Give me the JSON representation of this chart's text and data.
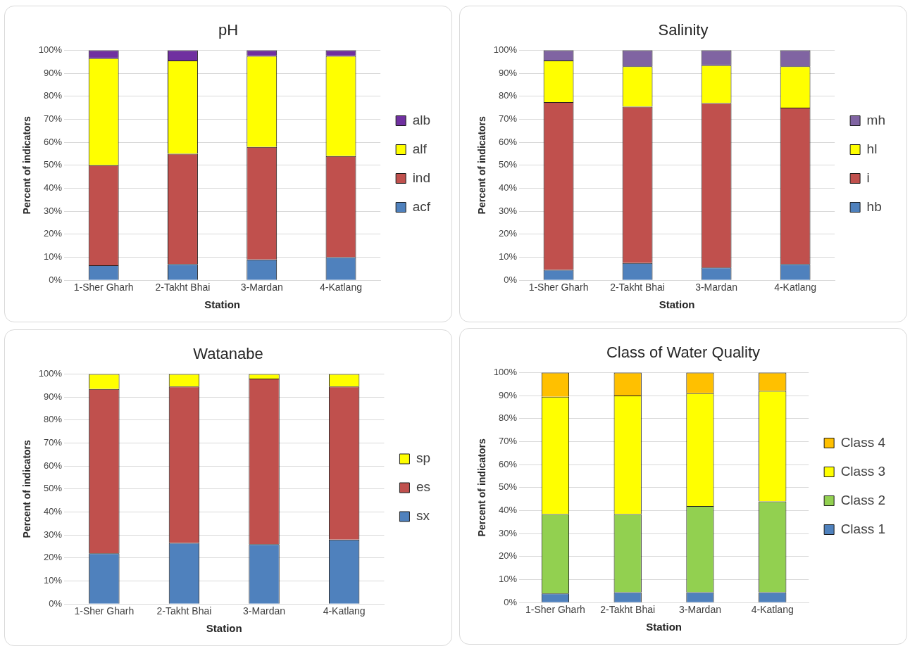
{
  "chart_data": [
    {
      "type": "bar",
      "title": "pH",
      "xlabel": "Station",
      "ylabel": "Percent of indicators",
      "categories": [
        "1-Sher Gharh",
        "2-Takht Bhai",
        "3-Mardan",
        "4-Katlang"
      ],
      "stacked": true,
      "legend": "right",
      "grid": "y",
      "ylim": [
        0,
        100
      ],
      "yticks": [
        {
          "value": 0,
          "label": "0%"
        },
        {
          "value": 10,
          "label": "10%"
        },
        {
          "value": 20,
          "label": "20%"
        },
        {
          "value": 30,
          "label": "30%"
        },
        {
          "value": 40,
          "label": "40%"
        },
        {
          "value": 50,
          "label": "50%"
        },
        {
          "value": 60,
          "label": "60%"
        },
        {
          "value": 70,
          "label": "70%"
        },
        {
          "value": 80,
          "label": "80%"
        },
        {
          "value": 90,
          "label": "90%"
        },
        {
          "value": 100,
          "label": "100%"
        }
      ],
      "series": [
        {
          "name": "acf",
          "color": "#4f81bd",
          "values": [
            6.5,
            7,
            9,
            10
          ]
        },
        {
          "name": "ind",
          "color": "#c0504d",
          "values": [
            43.5,
            48,
            49,
            44
          ]
        },
        {
          "name": "alf",
          "color": "#ffff00",
          "values": [
            46.5,
            40.5,
            39.5,
            43.5
          ]
        },
        {
          "name": "alb",
          "color": "#7030a0",
          "values": [
            3.5,
            4.5,
            2.5,
            2.5
          ]
        }
      ]
    },
    {
      "type": "bar",
      "title": "Salinity",
      "xlabel": "Station",
      "ylabel": "Percent of indicators",
      "categories": [
        "1-Sher Gharh",
        "2-Takht Bhai",
        "3-Mardan",
        "4-Katlang"
      ],
      "stacked": true,
      "legend": "right",
      "grid": "y",
      "ylim": [
        0,
        100
      ],
      "yticks": [
        {
          "value": 0,
          "label": "0%"
        },
        {
          "value": 10,
          "label": "10%"
        },
        {
          "value": 20,
          "label": "20%"
        },
        {
          "value": 30,
          "label": "30%"
        },
        {
          "value": 40,
          "label": "40%"
        },
        {
          "value": 50,
          "label": "50%"
        },
        {
          "value": 60,
          "label": "60%"
        },
        {
          "value": 70,
          "label": "70%"
        },
        {
          "value": 80,
          "label": "80%"
        },
        {
          "value": 90,
          "label": "90%"
        },
        {
          "value": 100,
          "label": "100%"
        }
      ],
      "series": [
        {
          "name": "hb",
          "color": "#4f81bd",
          "values": [
            4.5,
            7.5,
            5.5,
            7
          ]
        },
        {
          "name": "i",
          "color": "#c0504d",
          "values": [
            73,
            68,
            71.5,
            68
          ]
        },
        {
          "name": "hl",
          "color": "#ffff00",
          "values": [
            18,
            17.5,
            16.5,
            18
          ]
        },
        {
          "name": "mh",
          "color": "#8064a2",
          "values": [
            4.5,
            7,
            6.5,
            7
          ]
        }
      ]
    },
    {
      "type": "bar",
      "title": "Watanabe",
      "xlabel": "Station",
      "ylabel": "Percent of indicators",
      "categories": [
        "1-Sher Gharh",
        "2-Takht Bhai",
        "3-Mardan",
        "4-Katlang"
      ],
      "stacked": true,
      "legend": "right",
      "grid": "y",
      "ylim": [
        0,
        100
      ],
      "yticks": [
        {
          "value": 0,
          "label": "0%"
        },
        {
          "value": 10,
          "label": "10%"
        },
        {
          "value": 20,
          "label": "20%"
        },
        {
          "value": 30,
          "label": "30%"
        },
        {
          "value": 40,
          "label": "40%"
        },
        {
          "value": 50,
          "label": "50%"
        },
        {
          "value": 60,
          "label": "60%"
        },
        {
          "value": 70,
          "label": "70%"
        },
        {
          "value": 80,
          "label": "80%"
        },
        {
          "value": 90,
          "label": "90%"
        },
        {
          "value": 100,
          "label": "100%"
        }
      ],
      "series": [
        {
          "name": "sx",
          "color": "#4f81bd",
          "values": [
            22,
            26.5,
            26,
            28
          ]
        },
        {
          "name": "es",
          "color": "#c0504d",
          "values": [
            71.5,
            68,
            72,
            66.5
          ]
        },
        {
          "name": "sp",
          "color": "#ffff00",
          "values": [
            6.5,
            5.5,
            2,
            5.5
          ]
        }
      ]
    },
    {
      "type": "bar",
      "title": "Class of Water Quality",
      "xlabel": "Station",
      "ylabel": "Percent of indicators",
      "categories": [
        "1-Sher Gharh",
        "2-Takht Bhai",
        "3-Mardan",
        "4-Katlang"
      ],
      "stacked": true,
      "legend": "right",
      "grid": "y",
      "ylim": [
        0,
        100
      ],
      "yticks": [
        {
          "value": 0,
          "label": "0%"
        },
        {
          "value": 10,
          "label": "10%"
        },
        {
          "value": 20,
          "label": "20%"
        },
        {
          "value": 30,
          "label": "30%"
        },
        {
          "value": 40,
          "label": "40%"
        },
        {
          "value": 50,
          "label": "50%"
        },
        {
          "value": 60,
          "label": "60%"
        },
        {
          "value": 70,
          "label": "70%"
        },
        {
          "value": 80,
          "label": "80%"
        },
        {
          "value": 90,
          "label": "90%"
        },
        {
          "value": 100,
          "label": "100%"
        }
      ],
      "series": [
        {
          "name": "Class 1",
          "color": "#4f81bd",
          "values": [
            4,
            4.5,
            4.5,
            4.5
          ]
        },
        {
          "name": "Class 2",
          "color": "#92d050",
          "values": [
            34.5,
            34,
            37.5,
            39.5
          ]
        },
        {
          "name": "Class 3",
          "color": "#ffff00",
          "values": [
            51,
            51.5,
            49,
            48
          ]
        },
        {
          "name": "Class 4",
          "color": "#ffc000",
          "values": [
            10.5,
            10,
            9,
            8
          ]
        }
      ]
    }
  ]
}
